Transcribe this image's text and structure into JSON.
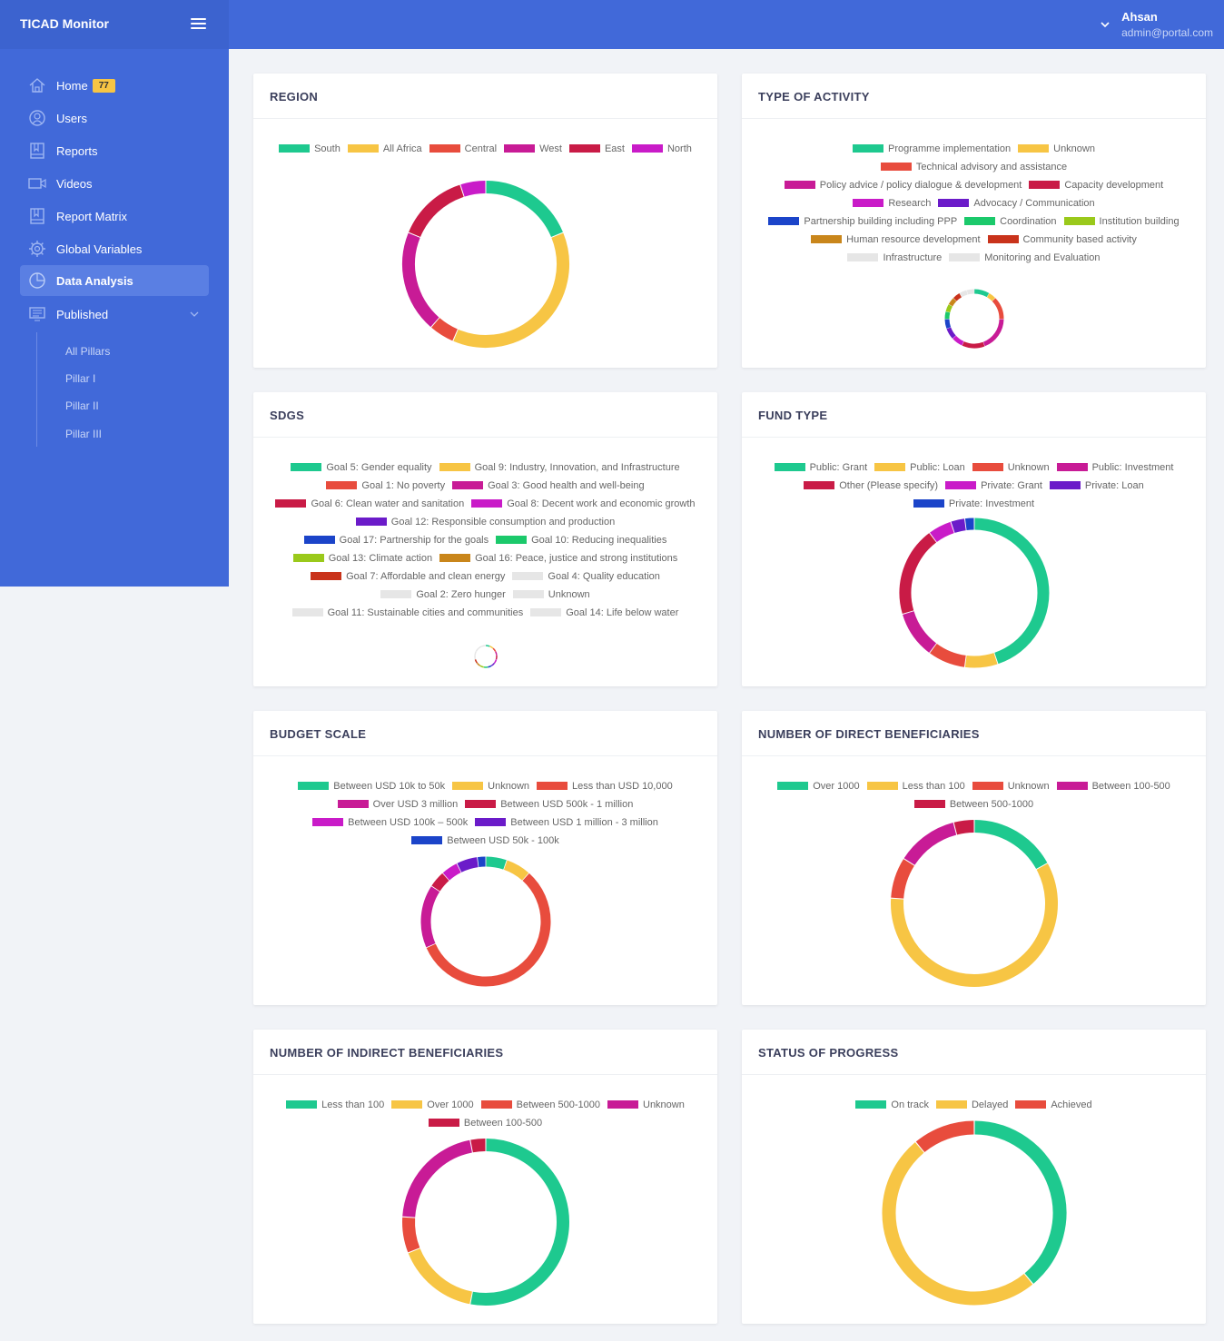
{
  "app": {
    "title": "TICAD Monitor"
  },
  "user": {
    "name": "Ahsan",
    "email": "admin@portal.com"
  },
  "sidebar": {
    "items": [
      {
        "label": "Home",
        "icon": "home-icon",
        "badge": "77"
      },
      {
        "label": "Users",
        "icon": "users-icon"
      },
      {
        "label": "Reports",
        "icon": "reports-icon"
      },
      {
        "label": "Videos",
        "icon": "video-icon"
      },
      {
        "label": "Report Matrix",
        "icon": "matrix-icon"
      },
      {
        "label": "Global Variables",
        "icon": "gear-icon"
      },
      {
        "label": "Data Analysis",
        "icon": "pie-chart-icon"
      },
      {
        "label": "Published",
        "icon": "monitor-icon"
      }
    ],
    "subitems": [
      {
        "label": "All Pillars"
      },
      {
        "label": "Pillar I"
      },
      {
        "label": "Pillar II"
      },
      {
        "label": "Pillar III"
      }
    ]
  },
  "chart_data": [
    {
      "type": "pie",
      "title": "REGION",
      "categories": [
        "South",
        "All Africa",
        "Central",
        "West",
        "East",
        "North"
      ],
      "values": [
        19,
        38,
        5,
        20,
        14,
        5
      ],
      "colors": [
        "#1ec98f",
        "#f7c544",
        "#e84c3d",
        "#c81b96",
        "#c91b46",
        "#c91bc8"
      ]
    },
    {
      "type": "pie",
      "title": "TYPE OF ACTIVITY",
      "categories": [
        "Programme implementation",
        "Unknown",
        "Technical advisory and assistance",
        "Policy advice / policy dialogue & development",
        "Capacity development",
        "Research",
        "Advocacy / Communication",
        "Partnership building including PPP",
        "Coordination",
        "Institution building",
        "Human resource development",
        "Community based activity",
        "Infrastructure",
        "Monitoring and Evaluation"
      ],
      "values": [
        8,
        4,
        12,
        18,
        12,
        6,
        6,
        5,
        4,
        4,
        4,
        4,
        4,
        4
      ],
      "colors": [
        "#1ec98f",
        "#f7c544",
        "#e84c3d",
        "#c81b96",
        "#c91b46",
        "#c91bc8",
        "#6b1bc9",
        "#1b44c9",
        "#1bc96b",
        "#9ac91b",
        "#c9861b",
        "#c9331b",
        "#e6e6e6",
        "#e6e6e6"
      ]
    },
    {
      "type": "pie",
      "title": "SDGS",
      "categories": [
        "Goal 5: Gender equality",
        "Goal 9: Industry, Innovation, and Infrastructure",
        "Goal 1: No poverty",
        "Goal 3: Good health and well-being",
        "Goal 6: Clean water and sanitation",
        "Goal 8: Decent work and economic growth",
        "Goal 12: Responsible consumption and production",
        "Goal 17: Partnership for the goals",
        "Goal 10: Reducing inequalities",
        "Goal 13: Climate action",
        "Goal 16: Peace, justice and strong institutions",
        "Goal 7: Affordable and clean energy",
        "Goal 4: Quality education",
        "Goal 2: Zero hunger",
        "Unknown",
        "Goal 11: Sustainable cities and communities",
        "Goal 14: Life below water"
      ],
      "values": [
        6,
        6,
        6,
        6,
        6,
        6,
        6,
        6,
        6,
        6,
        6,
        6,
        6,
        6,
        6,
        6,
        6
      ],
      "colors": [
        "#1ec98f",
        "#f7c544",
        "#e84c3d",
        "#c81b96",
        "#c91b46",
        "#c91bc8",
        "#6b1bc9",
        "#1b44c9",
        "#1bc96b",
        "#9ac91b",
        "#c9861b",
        "#c9331b",
        "#e6e6e6",
        "#e6e6e6",
        "#e6e6e6",
        "#e6e6e6",
        "#e6e6e6"
      ]
    },
    {
      "type": "pie",
      "title": "FUND TYPE",
      "categories": [
        "Public: Grant",
        "Public: Loan",
        "Unknown",
        "Public: Investment",
        "Other (Please specify)",
        "Private: Grant",
        "Private: Loan",
        "Private: Investment"
      ],
      "values": [
        44,
        7,
        8,
        10,
        19,
        5,
        3,
        2
      ],
      "colors": [
        "#1ec98f",
        "#f7c544",
        "#e84c3d",
        "#c81b96",
        "#c91b46",
        "#c91bc8",
        "#6b1bc9",
        "#1b44c9"
      ]
    },
    {
      "type": "pie",
      "title": "BUDGET SCALE",
      "categories": [
        "Between USD 10k to 50k",
        "Unknown",
        "Less than USD 10,000",
        "Over USD 3 million",
        "Between USD 500k - 1 million",
        "Between USD 100k – 500k",
        "Between USD 1 million - 3 million",
        "Between USD 50k - 100k"
      ],
      "values": [
        5,
        6,
        54,
        15,
        4,
        4,
        5,
        2
      ],
      "colors": [
        "#1ec98f",
        "#f7c544",
        "#e84c3d",
        "#c81b96",
        "#c91b46",
        "#c91bc8",
        "#6b1bc9",
        "#1b44c9"
      ]
    },
    {
      "type": "pie",
      "title": "NUMBER OF DIRECT BENEFICIARIES",
      "categories": [
        "Over 1000",
        "Less than 100",
        "Unknown",
        "Between 100-500",
        "Between 500-1000"
      ],
      "values": [
        17,
        59,
        8,
        12,
        4
      ],
      "colors": [
        "#1ec98f",
        "#f7c544",
        "#e84c3d",
        "#c81b96",
        "#c91b46"
      ]
    },
    {
      "type": "pie",
      "title": "NUMBER OF INDIRECT BENEFICIARIES",
      "categories": [
        "Less than 100",
        "Over 1000",
        "Between 500-1000",
        "Unknown",
        "Between 100-500"
      ],
      "values": [
        53,
        16,
        7,
        21,
        3
      ],
      "colors": [
        "#1ec98f",
        "#f7c544",
        "#e84c3d",
        "#c81b96",
        "#c91b46"
      ]
    },
    {
      "type": "pie",
      "title": "STATUS OF PROGRESS",
      "categories": [
        "On track",
        "Delayed",
        "Achieved"
      ],
      "values": [
        39,
        50,
        11
      ],
      "colors": [
        "#1ec98f",
        "#f7c544",
        "#e84c3d"
      ]
    }
  ]
}
